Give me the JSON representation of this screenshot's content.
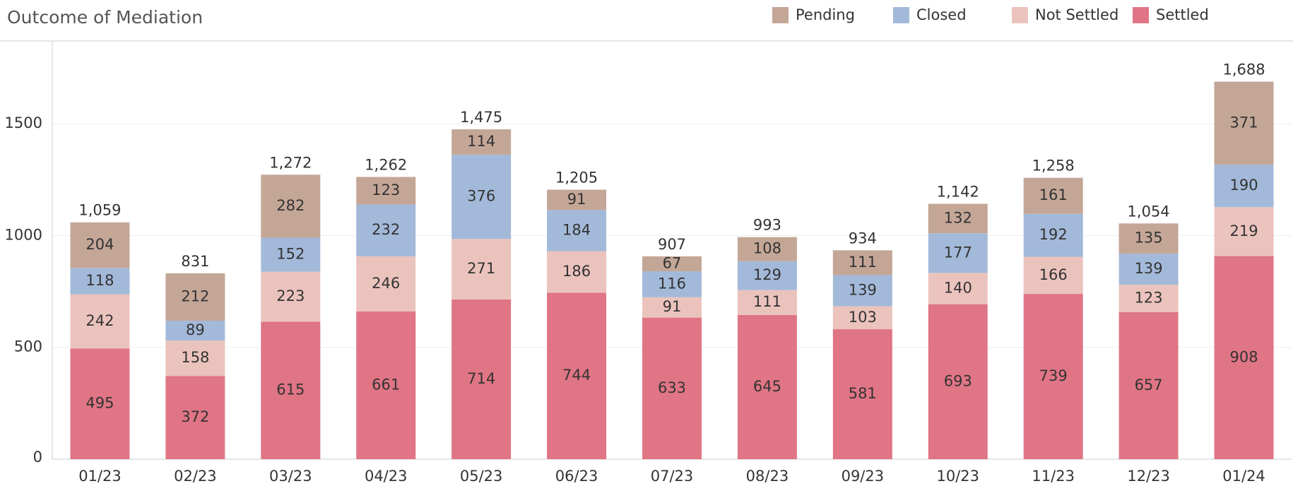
{
  "chart_data": {
    "type": "stacked_bar",
    "title": "Outcome of Mediation",
    "categories": [
      "01/23",
      "02/23",
      "03/23",
      "04/23",
      "05/23",
      "06/23",
      "07/23",
      "08/23",
      "09/23",
      "10/23",
      "11/23",
      "12/23",
      "01/24"
    ],
    "series": [
      {
        "name": "Settled",
        "color": "#e07585",
        "values": [
          495,
          372,
          615,
          661,
          714,
          744,
          633,
          645,
          581,
          693,
          739,
          657,
          908
        ]
      },
      {
        "name": "Not Settled",
        "color": "#ebc3bd",
        "values": [
          242,
          158,
          223,
          246,
          271,
          186,
          91,
          111,
          103,
          140,
          166,
          123,
          219
        ]
      },
      {
        "name": "Closed",
        "color": "#a3b9d9",
        "values": [
          118,
          89,
          152,
          232,
          376,
          184,
          116,
          129,
          139,
          177,
          192,
          139,
          190
        ]
      },
      {
        "name": "Pending",
        "color": "#c4a697",
        "values": [
          204,
          212,
          282,
          123,
          114,
          91,
          67,
          108,
          111,
          132,
          161,
          135,
          371
        ]
      }
    ],
    "totals": {
      "values": [
        1059,
        831,
        1272,
        1262,
        1475,
        1205,
        907,
        993,
        934,
        1142,
        1258,
        1054,
        1688
      ],
      "value_labels": [
        "1,059",
        "831",
        "1,272",
        "1,262",
        "1,475",
        "1,205",
        "907",
        "993",
        "934",
        "1,142",
        "1,258",
        "1,054",
        "1,688"
      ]
    },
    "ylim": [
      0,
      1870
    ],
    "yticks": [
      0,
      500,
      1000,
      1500
    ],
    "grid": true,
    "legend": "top-right"
  }
}
